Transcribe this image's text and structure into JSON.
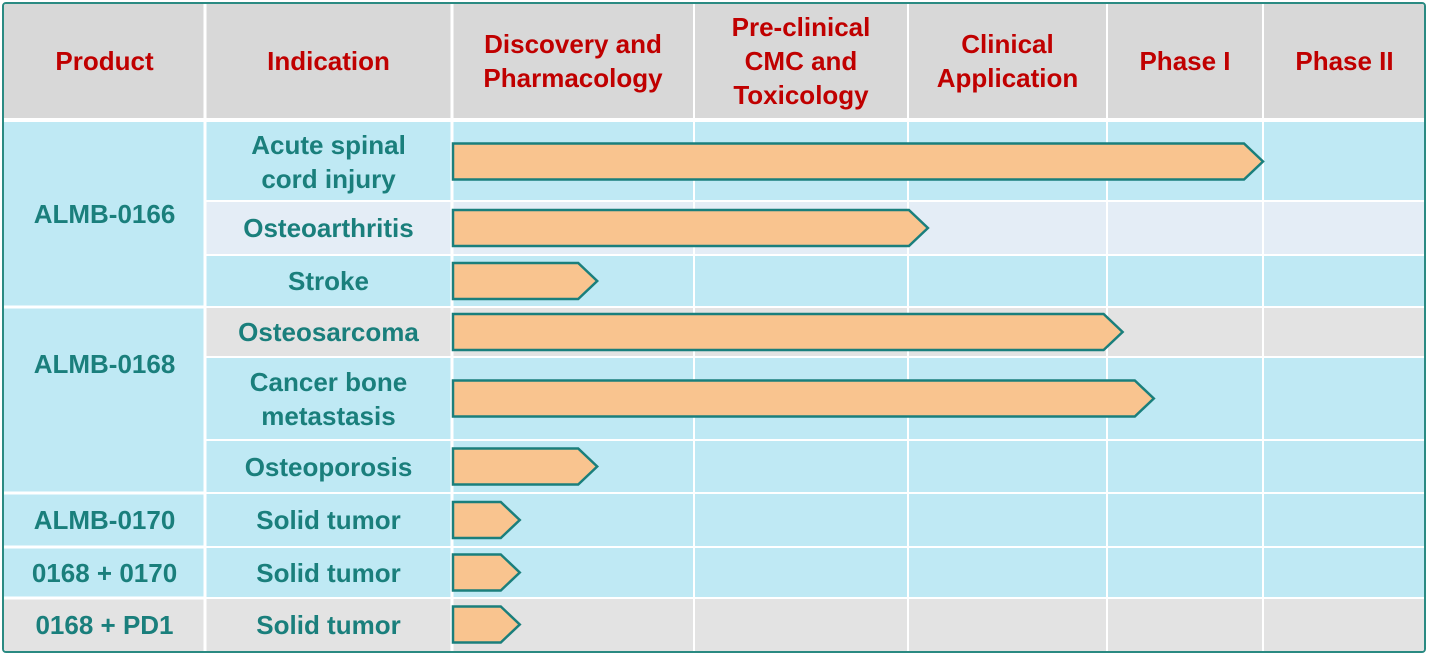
{
  "columns": [
    "Product",
    "Indication",
    "Discovery and\nPharmacology",
    "Pre-clinical\nCMC and\nToxicology",
    "Clinical\nApplication",
    "Phase I",
    "Phase II"
  ],
  "products": [
    "ALMB-0166",
    "ALMB-0168",
    "ALMB-0170",
    "0168 + 0170",
    "0168 + PD1"
  ],
  "colors": {
    "header_text": "#c00000",
    "body_text": "#1a7f7c",
    "header_bg": "#d8d8d8",
    "row_blue": "#bfe9f4",
    "row_light": "#e4edf6",
    "row_grey": "#e3e3e3",
    "bar_fill": "#f9c48f",
    "bar_stroke": "#1a7f7c",
    "border": "#2a8a82"
  },
  "chart_data": {
    "type": "table",
    "stage_order": [
      "Discovery and Pharmacology",
      "Pre-clinical CMC and Toxicology",
      "Clinical Application",
      "Phase I",
      "Phase II"
    ],
    "rows": [
      {
        "product": "ALMB-0166",
        "indication": "Acute spinal\ncord injury",
        "progress_stages": 4.0
      },
      {
        "product": "ALMB-0166",
        "indication": "Osteoarthritis",
        "progress_stages": 2.1
      },
      {
        "product": "ALMB-0166",
        "indication": "Stroke",
        "progress_stages": 0.6
      },
      {
        "product": "ALMB-0168",
        "indication": "Osteosarcoma",
        "progress_stages": 3.1
      },
      {
        "product": "ALMB-0168",
        "indication": "Cancer bone\nmetastasis",
        "progress_stages": 3.3
      },
      {
        "product": "ALMB-0168",
        "indication": "Osteoporosis",
        "progress_stages": 0.6
      },
      {
        "product": "ALMB-0170",
        "indication": "Solid tumor",
        "progress_stages": 0.28
      },
      {
        "product": "0168 + 0170",
        "indication": "Solid tumor",
        "progress_stages": 0.28
      },
      {
        "product": "0168 + PD1",
        "indication": "Solid tumor",
        "progress_stages": 0.28
      }
    ]
  }
}
